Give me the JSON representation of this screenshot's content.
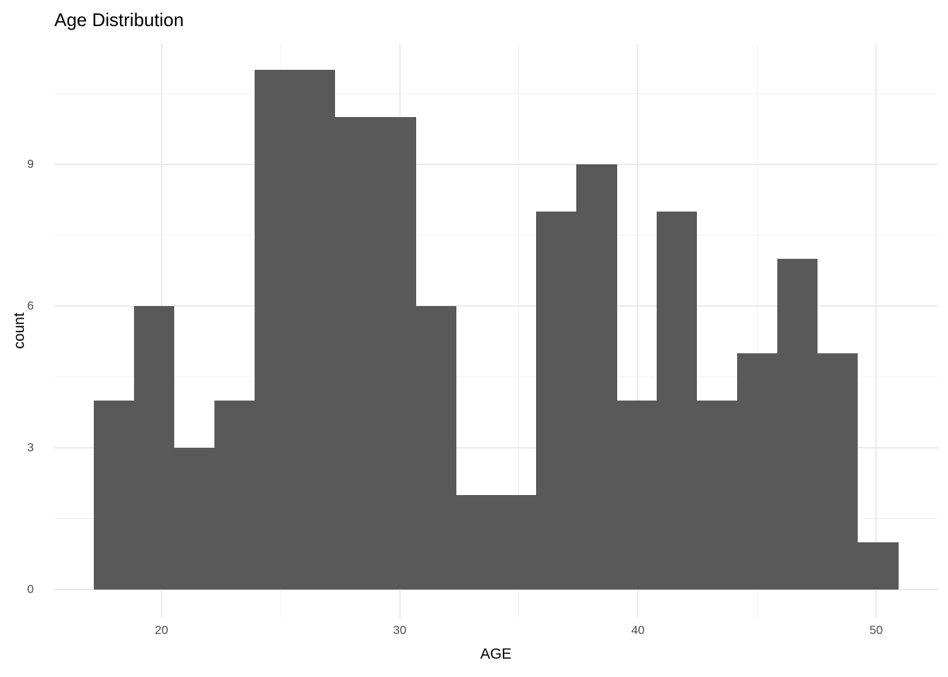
{
  "chart_data": {
    "type": "bar",
    "subtype": "histogram",
    "title": "Age Distribution",
    "xlabel": "AGE",
    "ylabel": "count",
    "x_domain": [
      15.5,
      52.6
    ],
    "y_domain": [
      -0.6,
      11.55
    ],
    "x_ticks": [
      20,
      30,
      40,
      50
    ],
    "y_ticks": [
      0,
      3,
      6,
      9
    ],
    "x_minor_ticks": [
      25,
      35,
      45
    ],
    "y_minor_ticks": [
      1.5,
      4.5,
      7.5,
      10.5
    ],
    "grid": "on",
    "legend": "none",
    "bin_width": 1.687,
    "total_count": 120,
    "bins": [
      {
        "x0": 17.16,
        "x1": 18.85,
        "count": 4
      },
      {
        "x0": 18.85,
        "x1": 20.53,
        "count": 6
      },
      {
        "x0": 20.53,
        "x1": 22.22,
        "count": 3
      },
      {
        "x0": 22.22,
        "x1": 23.91,
        "count": 4
      },
      {
        "x0": 23.91,
        "x1": 25.6,
        "count": 11
      },
      {
        "x0": 25.6,
        "x1": 27.28,
        "count": 11
      },
      {
        "x0": 27.28,
        "x1": 28.97,
        "count": 10
      },
      {
        "x0": 28.97,
        "x1": 30.66,
        "count": 10
      },
      {
        "x0": 30.66,
        "x1": 32.35,
        "count": 6
      },
      {
        "x0": 32.35,
        "x1": 34.03,
        "count": 2
      },
      {
        "x0": 34.03,
        "x1": 35.72,
        "count": 2
      },
      {
        "x0": 35.72,
        "x1": 37.41,
        "count": 8
      },
      {
        "x0": 37.41,
        "x1": 39.1,
        "count": 9
      },
      {
        "x0": 39.1,
        "x1": 40.78,
        "count": 4
      },
      {
        "x0": 40.78,
        "x1": 42.47,
        "count": 8
      },
      {
        "x0": 42.47,
        "x1": 44.16,
        "count": 4
      },
      {
        "x0": 44.16,
        "x1": 45.85,
        "count": 5
      },
      {
        "x0": 45.85,
        "x1": 47.53,
        "count": 7
      },
      {
        "x0": 47.53,
        "x1": 49.22,
        "count": 5
      },
      {
        "x0": 49.22,
        "x1": 50.91,
        "count": 1
      }
    ],
    "colors": {
      "bar_fill": "#595959",
      "grid_major": "#ebebeb",
      "grid_minor": "#f2f2f2",
      "tick_text": "#4d4d4d",
      "title_text": "#000000",
      "background": "#ffffff"
    }
  }
}
